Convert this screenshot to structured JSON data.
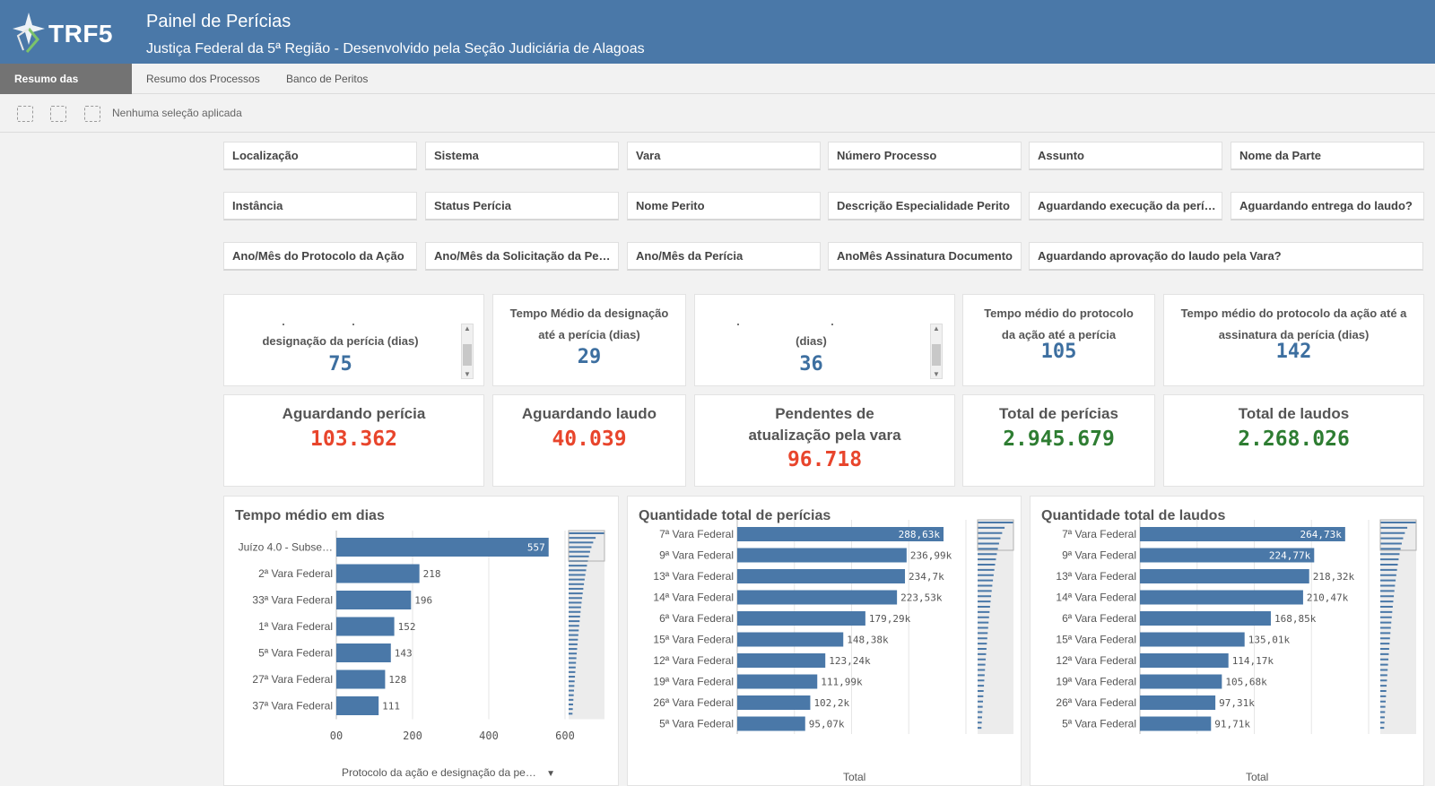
{
  "header": {
    "logo_text": "TRF5",
    "title": "Painel de Perícias",
    "subtitle": "Justiça Federal da 5ª Região - Desenvolvido pela Seção Judiciária de Alagoas",
    "bg_color": "#4a78a8"
  },
  "tabs": [
    {
      "label": "Resumo das Perícias",
      "active": true
    },
    {
      "label": "Resumo dos Processos",
      "active": false
    },
    {
      "label": "Banco de Peritos",
      "active": false
    }
  ],
  "selection_bar": {
    "icons": [
      "smart-search-icon",
      "step-back-icon",
      "clear-selections-icon"
    ],
    "text": "Nenhuma seleção aplicada"
  },
  "filters": [
    [
      "Localização",
      "Sistema",
      "Vara",
      "Número Processo",
      "Assunto",
      "Nome da Parte"
    ],
    [
      "Instância",
      "Status Perícia",
      "Nome Perito",
      "Descrição Especialidade Perito",
      "Aguardando execução da perí…",
      "Aguardando entrega do laudo?"
    ],
    [
      "Ano/Mês do Protocolo da Ação",
      "Ano/Mês da Solicitação da Pe…",
      "Ano/Mês da Perícia",
      "AnoMês Assinatura Documento",
      "Aguardando aprovação do laudo pela Vara?"
    ]
  ],
  "kpis_time": [
    {
      "label": "designação da perícia (dias)",
      "value": "75",
      "scroll": true
    },
    {
      "label": "Tempo Médio da designação até a perícia (dias)",
      "value": "29",
      "scroll": false
    },
    {
      "label": "(dias)",
      "value": "36",
      "scroll": true
    },
    {
      "label": "Tempo médio do protocolo da ação até a perícia",
      "value": "105",
      "scroll": false
    },
    {
      "label": "Tempo médio do protocolo da ação até a assinatura da perícia (dias)",
      "value": "142",
      "scroll": false
    }
  ],
  "kpis_totals": [
    {
      "label": "Aguardando perícia",
      "value": "103.362",
      "color": "#e8452c"
    },
    {
      "label": "Aguardando laudo",
      "value": "40.039",
      "color": "#e8452c"
    },
    {
      "label": "Pendentes de atualização pela vara",
      "value": "96.718",
      "color": "#e8452c"
    },
    {
      "label": "Total de perícias",
      "value": "2.945.679",
      "color": "#2e7d32"
    },
    {
      "label": "Total de laudos",
      "value": "2.268.026",
      "color": "#2e7d32"
    }
  ],
  "charts": {
    "tempo": {
      "title": "Tempo médio em dias",
      "dropdown": "Protocolo da ação e designação da pe…"
    },
    "pericias": {
      "title": "Quantidade total de perícias",
      "xlabel": "Total"
    },
    "laudos": {
      "title": "Quantidade total de laudos",
      "xlabel": "Total"
    }
  },
  "chart_data": [
    {
      "type": "bar",
      "orientation": "horizontal",
      "title": "Tempo médio em dias",
      "categories": [
        "Juízo 4.0 - Subse…",
        "2ª Vara Federal",
        "33ª Vara Federal",
        "1ª Vara Federal",
        "5ª Vara Federal",
        "27ª Vara Federal",
        "37ª Vara Federal"
      ],
      "values": [
        557,
        218,
        196,
        152,
        143,
        128,
        111
      ],
      "labels": [
        "557",
        "218",
        "196",
        "152",
        "143",
        "128",
        "111"
      ],
      "ticks": [
        "00",
        "200",
        "400",
        "600"
      ],
      "xlim": [
        0,
        600
      ],
      "grid": true,
      "bar_color": "#4a78a8"
    },
    {
      "type": "bar",
      "orientation": "horizontal",
      "title": "Quantidade total de perícias",
      "xlabel": "Total",
      "categories": [
        "7ª Vara Federal",
        "9ª Vara Federal",
        "13ª Vara Federal",
        "14ª Vara Federal",
        "6ª Vara Federal",
        "15ª Vara Federal",
        "12ª Vara Federal",
        "19ª Vara Federal",
        "26ª Vara Federal",
        "5ª Vara Federal"
      ],
      "values": [
        288630,
        236990,
        234700,
        223530,
        179290,
        148380,
        123240,
        111990,
        102200,
        95070
      ],
      "labels": [
        "288,63k",
        "236,99k",
        "234,7k",
        "223,53k",
        "179,29k",
        "148,38k",
        "123,24k",
        "111,99k",
        "102,2k",
        "95,07k"
      ],
      "grid": true,
      "bar_color": "#4a78a8"
    },
    {
      "type": "bar",
      "orientation": "horizontal",
      "title": "Quantidade total de laudos",
      "xlabel": "Total",
      "categories": [
        "7ª Vara Federal",
        "9ª Vara Federal",
        "13ª Vara Federal",
        "14ª Vara Federal",
        "6ª Vara Federal",
        "15ª Vara Federal",
        "12ª Vara Federal",
        "19ª Vara Federal",
        "26ª Vara Federal",
        "5ª Vara Federal"
      ],
      "values": [
        264730,
        224770,
        218320,
        210470,
        168850,
        135010,
        114170,
        105680,
        97310,
        91710
      ],
      "labels": [
        "264,73k",
        "224,77k",
        "218,32k",
        "210,47k",
        "168,85k",
        "135,01k",
        "114,17k",
        "105,68k",
        "97,31k",
        "91,71k"
      ],
      "grid": true,
      "bar_color": "#4a78a8"
    }
  ]
}
